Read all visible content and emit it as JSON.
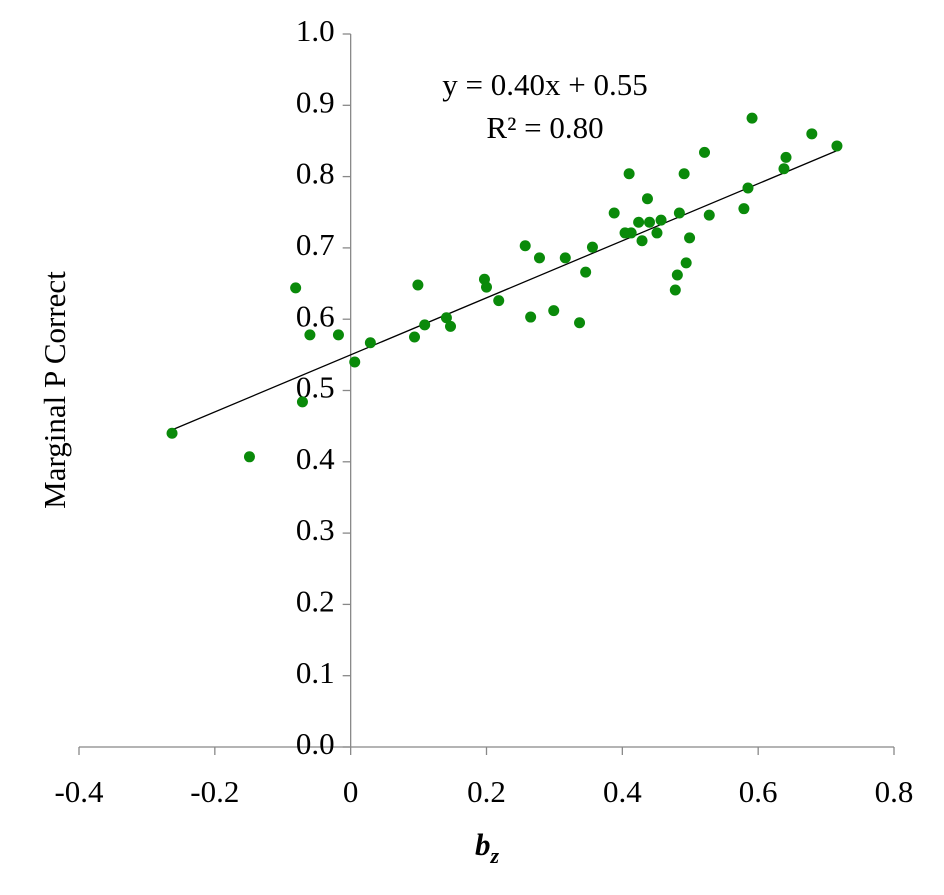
{
  "chart_data": {
    "type": "scatter",
    "y_label": "Marginal P Correct",
    "x_label": {
      "text": "b",
      "subscript": "z"
    },
    "annotations": [
      "y = 0.40x + 0.55",
      "R² = 0.80"
    ],
    "trendline": {
      "slope": 0.4,
      "intercept": 0.55,
      "color": "#000000"
    },
    "color": "#0a8a0a",
    "x": [
      -0.263,
      -0.149,
      -0.081,
      -0.071,
      -0.06,
      -0.018,
      0.006,
      0.029,
      0.094,
      0.099,
      0.109,
      0.141,
      0.147,
      0.197,
      0.2,
      0.218,
      0.257,
      0.265,
      0.278,
      0.299,
      0.316,
      0.337,
      0.346,
      0.356,
      0.388,
      0.404,
      0.41,
      0.413,
      0.424,
      0.429,
      0.437,
      0.44,
      0.451,
      0.457,
      0.478,
      0.481,
      0.484,
      0.491,
      0.494,
      0.499,
      0.521,
      0.528,
      0.579,
      0.585,
      0.591,
      0.638,
      0.641,
      0.679,
      0.716
    ],
    "values": [
      0.44,
      0.407,
      0.644,
      0.484,
      0.578,
      0.578,
      0.54,
      0.567,
      0.575,
      0.648,
      0.592,
      0.602,
      0.59,
      0.656,
      0.645,
      0.626,
      0.703,
      0.603,
      0.686,
      0.612,
      0.686,
      0.595,
      0.666,
      0.701,
      0.749,
      0.721,
      0.804,
      0.721,
      0.736,
      0.71,
      0.769,
      0.736,
      0.721,
      0.739,
      0.641,
      0.662,
      0.749,
      0.804,
      0.679,
      0.714,
      0.834,
      0.746,
      0.755,
      0.784,
      0.882,
      0.811,
      0.827,
      0.86,
      0.843
    ],
    "xlim": [
      -0.4,
      0.8
    ],
    "xticks": [
      -0.4,
      -0.2,
      0,
      0.2,
      0.4,
      0.6,
      0.8
    ],
    "ylim": [
      0,
      1
    ],
    "yticks": [
      {
        "value": 0,
        "label": "0.0"
      },
      0.1,
      0.2,
      0.3,
      0.4,
      0.5,
      0.6,
      0.7,
      0.8,
      0.9,
      {
        "value": 1,
        "label": "1.0"
      }
    ]
  }
}
